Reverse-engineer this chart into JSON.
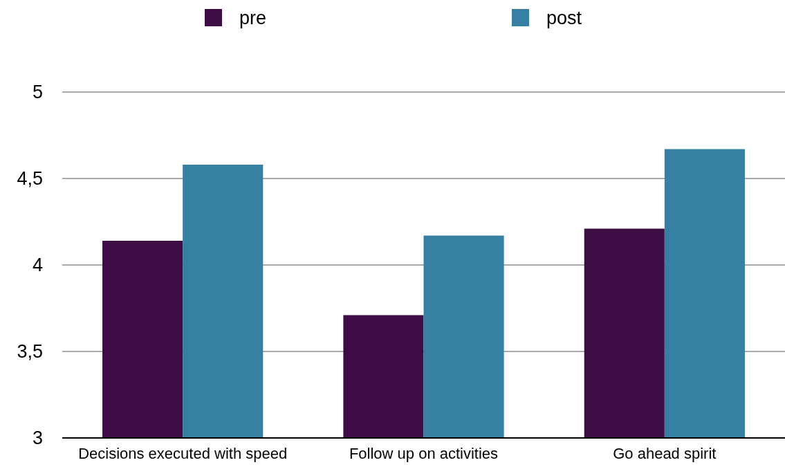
{
  "chart_data": {
    "type": "bar",
    "categories": [
      "Decisions executed with speed",
      "Follow up on activities",
      "Go ahead spirit"
    ],
    "series": [
      {
        "name": "pre",
        "color": "#3d0c45",
        "values": [
          4.14,
          3.71,
          4.21
        ]
      },
      {
        "name": "post",
        "color": "#3680a3",
        "values": [
          4.58,
          4.17,
          4.67
        ]
      }
    ],
    "ylim": [
      3,
      5
    ],
    "yticks": [
      3,
      {
        "value": 3.5,
        "label": "3,5"
      },
      4,
      {
        "value": 4.5,
        "label": "4,5"
      },
      5
    ],
    "grid": "y",
    "legend": "top"
  }
}
